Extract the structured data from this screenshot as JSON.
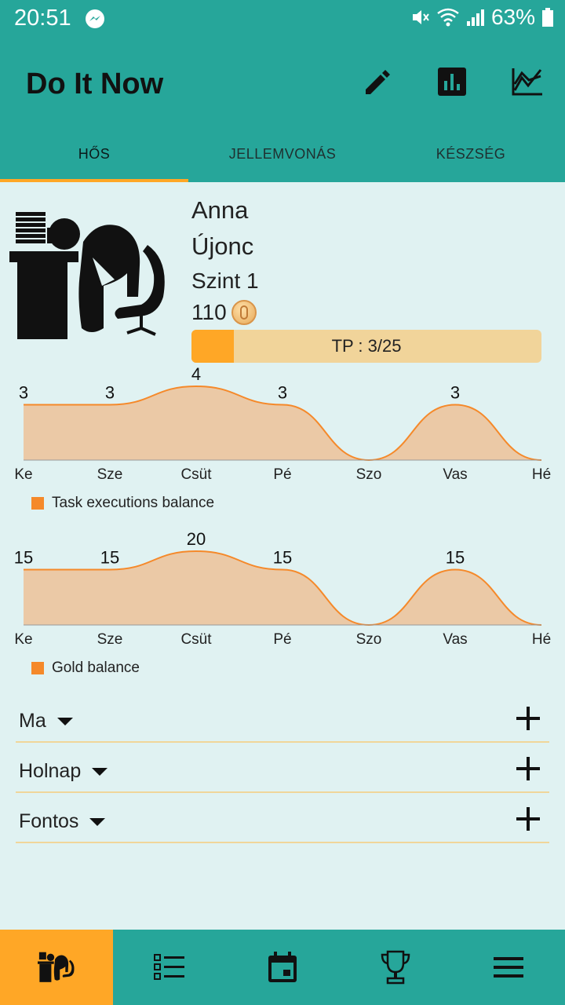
{
  "status": {
    "time": "20:51",
    "battery": "63%"
  },
  "appbar": {
    "title": "Do It Now"
  },
  "tabs": [
    {
      "label": "HŐS"
    },
    {
      "label": "JELLEMVONÁS"
    },
    {
      "label": "KÉSZSÉG"
    }
  ],
  "hero": {
    "name": "Anna",
    "rank": "Újonc",
    "level": "Szint 1",
    "gold": "110",
    "tp_label": "TP : 3/25",
    "tp_progress": 0.12
  },
  "chart_data": [
    {
      "type": "area",
      "categories": [
        "Ke",
        "Sze",
        "Csüt",
        "Pé",
        "Szo",
        "Vas",
        "Hé"
      ],
      "series": [
        {
          "name": "Task executions balance",
          "values": [
            3,
            3,
            4,
            3,
            0,
            3,
            0
          ]
        }
      ],
      "legend": "bottom-left",
      "color": "#f5892a"
    },
    {
      "type": "area",
      "categories": [
        "Ke",
        "Sze",
        "Csüt",
        "Pé",
        "Szo",
        "Vas",
        "Hé"
      ],
      "series": [
        {
          "name": "Gold balance",
          "values": [
            15,
            15,
            20,
            15,
            0,
            15,
            0
          ]
        }
      ],
      "legend": "bottom-left",
      "color": "#f5892a"
    }
  ],
  "sections": [
    {
      "label": "Ma"
    },
    {
      "label": "Holnap"
    },
    {
      "label": "Fontos"
    }
  ],
  "bottom_nav": [
    {
      "icon": "hero-icon",
      "active": true
    },
    {
      "icon": "task-list-icon"
    },
    {
      "icon": "calendar-icon"
    },
    {
      "icon": "trophy-icon"
    },
    {
      "icon": "menu-icon"
    }
  ],
  "colors": {
    "primary": "#26a69a",
    "accent": "#ffa726",
    "background": "#e0f2f2"
  }
}
